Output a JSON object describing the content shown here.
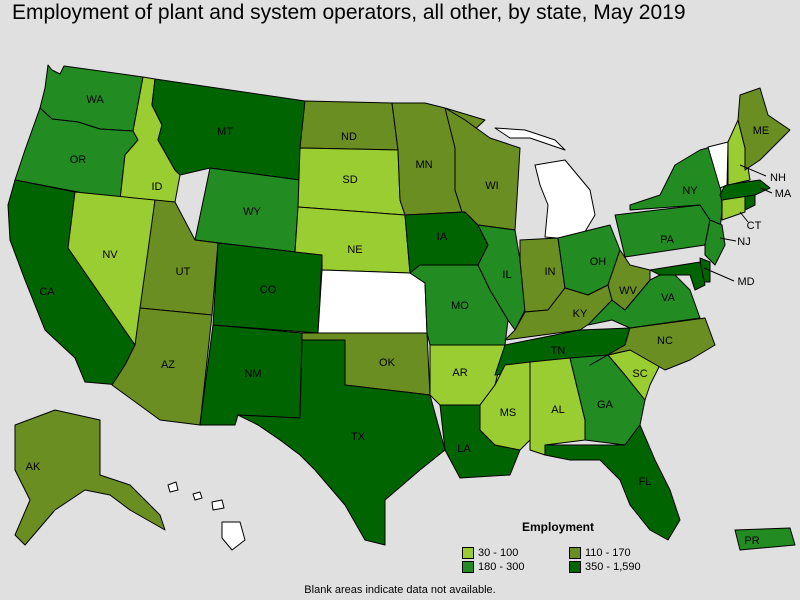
{
  "title": "Employment of plant and system operators, all other, by state, May 2019",
  "legend": {
    "heading": "Employment",
    "bins": [
      {
        "label": "30 - 100",
        "color": "#9acd32"
      },
      {
        "label": "110 - 170",
        "color": "#6b8e23"
      },
      {
        "label": "180 - 300",
        "color": "#228b22"
      },
      {
        "label": "350 - 1,590",
        "color": "#006400"
      }
    ]
  },
  "no_data_color": "#ffffff",
  "footnote": "Blank areas indicate data not available.",
  "map_data": {
    "type": "choropleth",
    "states": [
      {
        "abbr": "WA",
        "bin": 2
      },
      {
        "abbr": "OR",
        "bin": 2
      },
      {
        "abbr": "CA",
        "bin": 3
      },
      {
        "abbr": "ID",
        "bin": 0
      },
      {
        "abbr": "NV",
        "bin": 0
      },
      {
        "abbr": "MT",
        "bin": 3
      },
      {
        "abbr": "WY",
        "bin": 2
      },
      {
        "abbr": "UT",
        "bin": 1
      },
      {
        "abbr": "AZ",
        "bin": 1
      },
      {
        "abbr": "CO",
        "bin": 3
      },
      {
        "abbr": "NM",
        "bin": 3
      },
      {
        "abbr": "ND",
        "bin": 1
      },
      {
        "abbr": "SD",
        "bin": 0
      },
      {
        "abbr": "NE",
        "bin": 0
      },
      {
        "abbr": "KS",
        "bin": null
      },
      {
        "abbr": "OK",
        "bin": 1
      },
      {
        "abbr": "TX",
        "bin": 3
      },
      {
        "abbr": "MN",
        "bin": 1
      },
      {
        "abbr": "IA",
        "bin": 3
      },
      {
        "abbr": "MO",
        "bin": 2
      },
      {
        "abbr": "AR",
        "bin": 0
      },
      {
        "abbr": "LA",
        "bin": 3
      },
      {
        "abbr": "WI",
        "bin": 1
      },
      {
        "abbr": "IL",
        "bin": 2
      },
      {
        "abbr": "MI",
        "bin": null
      },
      {
        "abbr": "IN",
        "bin": 1
      },
      {
        "abbr": "OH",
        "bin": 2
      },
      {
        "abbr": "KY",
        "bin": 1
      },
      {
        "abbr": "TN",
        "bin": 3
      },
      {
        "abbr": "MS",
        "bin": 0
      },
      {
        "abbr": "AL",
        "bin": 0
      },
      {
        "abbr": "GA",
        "bin": 2
      },
      {
        "abbr": "FL",
        "bin": 3
      },
      {
        "abbr": "SC",
        "bin": 0
      },
      {
        "abbr": "NC",
        "bin": 1
      },
      {
        "abbr": "VA",
        "bin": 2
      },
      {
        "abbr": "WV",
        "bin": 1
      },
      {
        "abbr": "PA",
        "bin": 2
      },
      {
        "abbr": "NY",
        "bin": 2
      },
      {
        "abbr": "NJ",
        "bin": 2
      },
      {
        "abbr": "DE",
        "bin": 3
      },
      {
        "abbr": "MD",
        "bin": 3
      },
      {
        "abbr": "CT",
        "bin": 0
      },
      {
        "abbr": "RI",
        "bin": 3
      },
      {
        "abbr": "MA",
        "bin": 3
      },
      {
        "abbr": "VT",
        "bin": null
      },
      {
        "abbr": "NH",
        "bin": 0
      },
      {
        "abbr": "ME",
        "bin": 1
      },
      {
        "abbr": "AK",
        "bin": 1
      },
      {
        "abbr": "HI",
        "bin": null
      },
      {
        "abbr": "PR",
        "bin": 2
      }
    ]
  }
}
